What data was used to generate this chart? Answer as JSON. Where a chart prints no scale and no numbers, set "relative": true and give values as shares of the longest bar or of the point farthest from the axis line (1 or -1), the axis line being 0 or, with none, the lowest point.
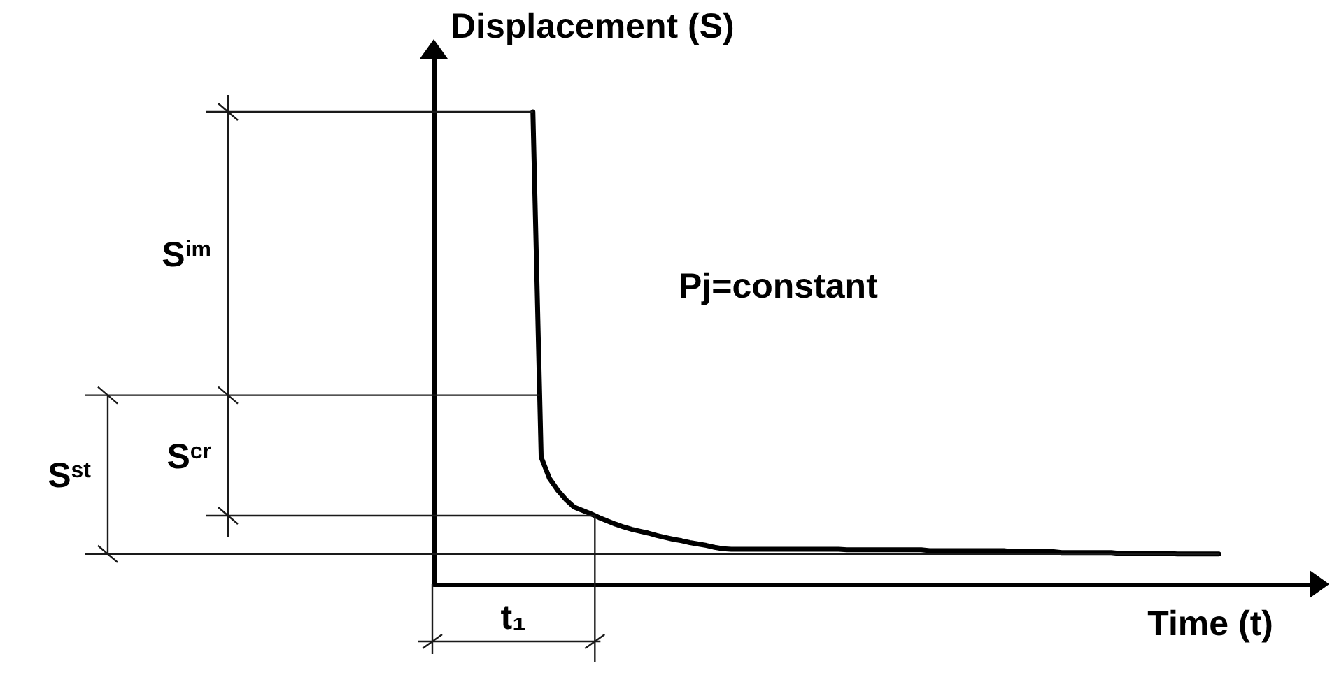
{
  "chart_data": {
    "type": "line",
    "relative": true,
    "xlabel": "Time (t)",
    "ylabel": "Displacement (S)",
    "color": "#000000",
    "categories": [
      null,
      null,
      null,
      null,
      null,
      null,
      null,
      null,
      null,
      null,
      null,
      null,
      null,
      null,
      null,
      null,
      null,
      null,
      null,
      null,
      null,
      null,
      null,
      null,
      null,
      null,
      null,
      null,
      null,
      null,
      null,
      null,
      null,
      null,
      null,
      null,
      null,
      null,
      null,
      null,
      null,
      null,
      null,
      null,
      null,
      null,
      null,
      null,
      null,
      null,
      null,
      null,
      null,
      null,
      null,
      null,
      null,
      null,
      null,
      null,
      null,
      null,
      null,
      null,
      null,
      null,
      null,
      null,
      null,
      null,
      null,
      null,
      null,
      null,
      null,
      null,
      null,
      null,
      null,
      null,
      null,
      null,
      null,
      null,
      null,
      null,
      null,
      null,
      null,
      null,
      null,
      null,
      null,
      null,
      null,
      null,
      null,
      null,
      null,
      null,
      null,
      null,
      null,
      null,
      null,
      null,
      null
    ],
    "values": [
      null,
      null,
      null,
      null,
      null,
      null,
      null,
      null,
      null,
      null,
      null,
      null,
      1,
      0.269,
      0.224,
      0.199,
      0.179,
      0.163,
      0.156,
      0.149,
      0.141,
      0.134,
      0.127,
      0.121,
      0.116,
      0.112,
      0.108,
      0.103,
      0.099,
      0.095,
      0.092,
      0.088,
      0.085,
      0.082,
      0.078,
      0.075,
      0.074,
      0.074,
      0.074,
      0.074,
      0.074,
      0.074,
      0.074,
      0.074,
      0.074,
      0.074,
      0.074,
      0.074,
      0.074,
      0.074,
      0.073,
      0.073,
      0.073,
      0.073,
      0.073,
      0.073,
      0.073,
      0.073,
      0.073,
      0.073,
      0.071,
      0.071,
      0.071,
      0.071,
      0.071,
      0.071,
      0.071,
      0.071,
      0.071,
      0.071,
      0.069,
      0.069,
      0.069,
      0.069,
      0.069,
      0.069,
      0.067,
      0.067,
      0.067,
      0.067,
      0.067,
      0.067,
      0.067,
      0.065,
      0.065,
      0.065,
      0.065,
      0.065,
      0.065,
      0.065,
      0.064,
      0.064,
      0.064,
      0.064,
      0.064,
      0.064,
      null,
      null,
      null,
      null,
      null,
      null,
      null,
      null,
      null,
      null,
      null
    ],
    "ref_lines": [
      {
        "axis": "y",
        "value": 1
      },
      {
        "axis": "y",
        "value": 0.4
      },
      {
        "axis": "y",
        "value": 0.145
      },
      {
        "axis": "y",
        "value": 0.064
      }
    ],
    "annotations": [
      "S$^{im}$",
      "S$^{cr}$",
      "S$^{st}$",
      "t₁",
      "Pj=constant"
    ]
  }
}
